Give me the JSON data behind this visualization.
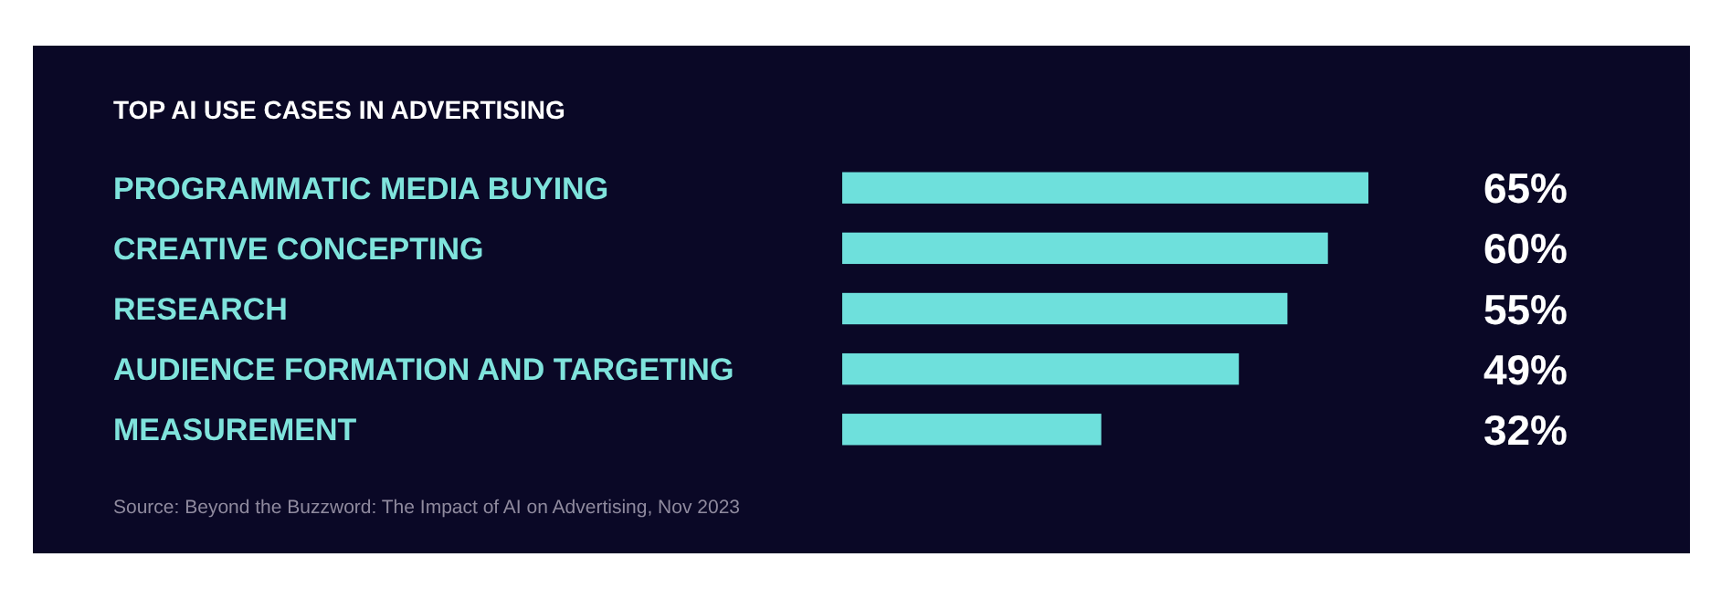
{
  "chart_data": {
    "type": "bar",
    "orientation": "horizontal",
    "title": "TOP AI USE CASES IN ADVERTISING",
    "categories": [
      "PROGRAMMATIC MEDIA BUYING",
      "CREATIVE CONCEPTING",
      "RESEARCH",
      "AUDIENCE FORMATION AND TARGETING",
      "MEASUREMENT"
    ],
    "values": [
      65,
      60,
      55,
      49,
      32
    ],
    "value_labels": [
      "65%",
      "60%",
      "55%",
      "49%",
      "32%"
    ],
    "color": "#6ee0dc",
    "annotations": [
      "Source: Beyond the Buzzword: The Impact of AI on Advertising, Nov 2023"
    ]
  }
}
